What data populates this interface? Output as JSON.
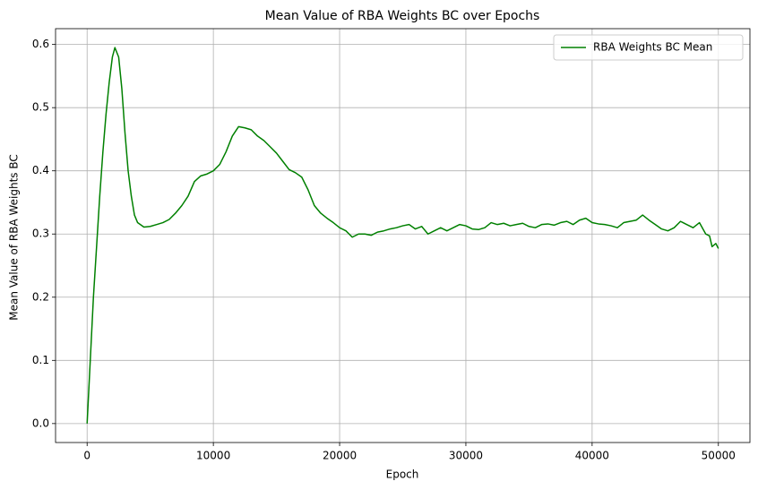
{
  "chart_data": {
    "type": "line",
    "title": "Mean Value of RBA Weights BC over Epochs",
    "x_label": "Epoch",
    "y_label": "Mean Value of RBA Weights BC",
    "x": [
      0,
      250,
      500,
      750,
      1000,
      1250,
      1500,
      1750,
      2000,
      2200,
      2500,
      2750,
      3000,
      3250,
      3500,
      3750,
      4000,
      4500,
      5000,
      5500,
      6000,
      6500,
      7000,
      7500,
      8000,
      8500,
      9000,
      9500,
      10000,
      10500,
      11000,
      11500,
      12000,
      12500,
      13000,
      13500,
      14000,
      14500,
      15000,
      15500,
      16000,
      16500,
      17000,
      17500,
      18000,
      18500,
      19000,
      19500,
      20000,
      20500,
      21000,
      21500,
      22000,
      22500,
      23000,
      23500,
      24000,
      24500,
      25000,
      25500,
      26000,
      26500,
      27000,
      27500,
      28000,
      28500,
      29000,
      29500,
      30000,
      30500,
      31000,
      31500,
      32000,
      32500,
      33000,
      33500,
      34000,
      34500,
      35000,
      35500,
      36000,
      36500,
      37000,
      37500,
      38000,
      38500,
      39000,
      39500,
      40000,
      40500,
      41000,
      41500,
      42000,
      42500,
      43000,
      43500,
      44000,
      44500,
      45000,
      45500,
      46000,
      46500,
      47000,
      47500,
      48000,
      48500,
      49000,
      49300,
      49500,
      49800,
      50000
    ],
    "series": [
      {
        "name": "RBA Weights BC Mean",
        "color": "#008000",
        "values": [
          0,
          0.1,
          0.2,
          0.28,
          0.36,
          0.43,
          0.49,
          0.54,
          0.58,
          0.595,
          0.58,
          0.53,
          0.46,
          0.4,
          0.36,
          0.33,
          0.318,
          0.311,
          0.312,
          0.315,
          0.318,
          0.323,
          0.333,
          0.345,
          0.36,
          0.383,
          0.392,
          0.395,
          0.4,
          0.41,
          0.43,
          0.455,
          0.47,
          0.468,
          0.465,
          0.455,
          0.448,
          0.438,
          0.428,
          0.415,
          0.402,
          0.397,
          0.39,
          0.37,
          0.345,
          0.333,
          0.325,
          0.318,
          0.31,
          0.305,
          0.295,
          0.3,
          0.3,
          0.298,
          0.303,
          0.305,
          0.308,
          0.31,
          0.313,
          0.315,
          0.308,
          0.312,
          0.3,
          0.305,
          0.31,
          0.305,
          0.31,
          0.315,
          0.313,
          0.308,
          0.307,
          0.31,
          0.318,
          0.315,
          0.317,
          0.313,
          0.315,
          0.317,
          0.312,
          0.31,
          0.315,
          0.316,
          0.314,
          0.318,
          0.32,
          0.315,
          0.322,
          0.325,
          0.318,
          0.316,
          0.315,
          0.313,
          0.31,
          0.318,
          0.32,
          0.322,
          0.33,
          0.322,
          0.315,
          0.308,
          0.305,
          0.31,
          0.32,
          0.315,
          0.31,
          0.318,
          0.3,
          0.297,
          0.28,
          0.285,
          0.277
        ]
      }
    ],
    "xlim": [
      -2500,
      52500
    ],
    "xticks": [
      0,
      10000,
      20000,
      30000,
      40000,
      50000
    ],
    "ylim": [
      -0.03,
      0.625
    ],
    "yticks": [
      {
        "value": 0,
        "label": "0.0"
      },
      0.1,
      0.2,
      0.3,
      0.4,
      0.5,
      0.6
    ],
    "grid": true,
    "legend": "upper right"
  }
}
